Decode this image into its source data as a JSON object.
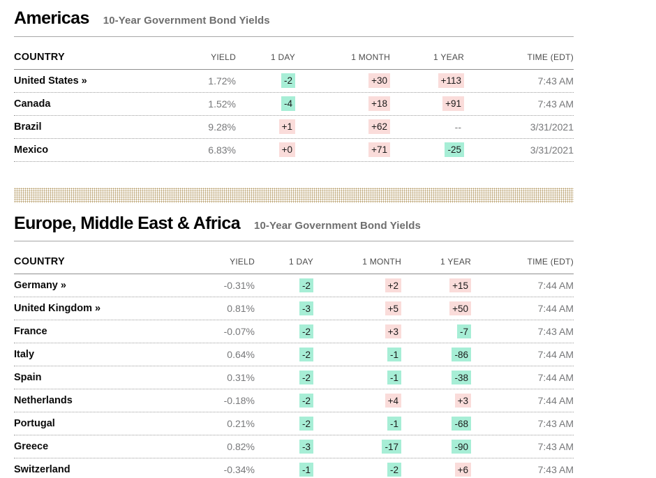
{
  "colors": {
    "change_up_bg": "#fadcda",
    "change_down_bg": "#a7eed6",
    "divider_dot": "#b0945c"
  },
  "sections": [
    {
      "title": "Americas",
      "subtitle": "10-Year Government Bond Yields",
      "columns": [
        "COUNTRY",
        "YIELD",
        "1 DAY",
        "1 MONTH",
        "1 YEAR",
        "TIME (EDT)"
      ],
      "rows": [
        {
          "country": "United States »",
          "yield": "1.72%",
          "changes": [
            {
              "text": "-2",
              "tone": "down"
            },
            {
              "text": "+30",
              "tone": "up"
            },
            {
              "text": "+113",
              "tone": "up"
            }
          ],
          "time": "7:43 AM"
        },
        {
          "country": "Canada",
          "yield": "1.52%",
          "changes": [
            {
              "text": "-4",
              "tone": "down"
            },
            {
              "text": "+18",
              "tone": "up"
            },
            {
              "text": "+91",
              "tone": "up"
            }
          ],
          "time": "7:43 AM"
        },
        {
          "country": "Brazil",
          "yield": "9.28%",
          "changes": [
            {
              "text": "+1",
              "tone": "up"
            },
            {
              "text": "+62",
              "tone": "up"
            },
            {
              "text": "--",
              "tone": "none"
            }
          ],
          "time": "3/31/2021"
        },
        {
          "country": "Mexico",
          "yield": "6.83%",
          "changes": [
            {
              "text": "+0",
              "tone": "up"
            },
            {
              "text": "+71",
              "tone": "up"
            },
            {
              "text": "-25",
              "tone": "down"
            }
          ],
          "time": "3/31/2021"
        }
      ]
    },
    {
      "title": "Europe, Middle East & Africa",
      "subtitle": "10-Year Government Bond Yields",
      "columns": [
        "COUNTRY",
        "YIELD",
        "1 DAY",
        "1 MONTH",
        "1 YEAR",
        "TIME (EDT)"
      ],
      "rows": [
        {
          "country": "Germany »",
          "yield": "-0.31%",
          "changes": [
            {
              "text": "-2",
              "tone": "down"
            },
            {
              "text": "+2",
              "tone": "up"
            },
            {
              "text": "+15",
              "tone": "up"
            }
          ],
          "time": "7:44 AM"
        },
        {
          "country": "United Kingdom »",
          "yield": "0.81%",
          "changes": [
            {
              "text": "-3",
              "tone": "down"
            },
            {
              "text": "+5",
              "tone": "up"
            },
            {
              "text": "+50",
              "tone": "up"
            }
          ],
          "time": "7:44 AM"
        },
        {
          "country": "France",
          "yield": "-0.07%",
          "changes": [
            {
              "text": "-2",
              "tone": "down"
            },
            {
              "text": "+3",
              "tone": "up"
            },
            {
              "text": "-7",
              "tone": "down"
            }
          ],
          "time": "7:43 AM"
        },
        {
          "country": "Italy",
          "yield": "0.64%",
          "changes": [
            {
              "text": "-2",
              "tone": "down"
            },
            {
              "text": "-1",
              "tone": "down"
            },
            {
              "text": "-86",
              "tone": "down"
            }
          ],
          "time": "7:44 AM"
        },
        {
          "country": "Spain",
          "yield": "0.31%",
          "changes": [
            {
              "text": "-2",
              "tone": "down"
            },
            {
              "text": "-1",
              "tone": "down"
            },
            {
              "text": "-38",
              "tone": "down"
            }
          ],
          "time": "7:44 AM"
        },
        {
          "country": "Netherlands",
          "yield": "-0.18%",
          "changes": [
            {
              "text": "-2",
              "tone": "down"
            },
            {
              "text": "+4",
              "tone": "up"
            },
            {
              "text": "+3",
              "tone": "up"
            }
          ],
          "time": "7:44 AM"
        },
        {
          "country": "Portugal",
          "yield": "0.21%",
          "changes": [
            {
              "text": "-2",
              "tone": "down"
            },
            {
              "text": "-1",
              "tone": "down"
            },
            {
              "text": "-68",
              "tone": "down"
            }
          ],
          "time": "7:43 AM"
        },
        {
          "country": "Greece",
          "yield": "0.82%",
          "changes": [
            {
              "text": "-3",
              "tone": "down"
            },
            {
              "text": "-17",
              "tone": "down"
            },
            {
              "text": "-90",
              "tone": "down"
            }
          ],
          "time": "7:43 AM"
        },
        {
          "country": "Switzerland",
          "yield": "-0.34%",
          "changes": [
            {
              "text": "-1",
              "tone": "down"
            },
            {
              "text": "-2",
              "tone": "down"
            },
            {
              "text": "+6",
              "tone": "up"
            }
          ],
          "time": "7:43 AM"
        }
      ]
    }
  ]
}
